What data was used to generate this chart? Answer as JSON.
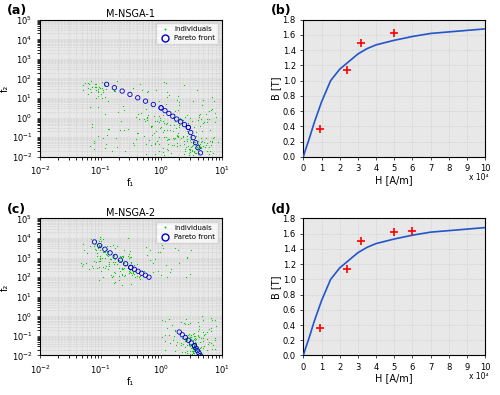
{
  "title_a": "M-NSGA-1",
  "title_c": "M-NSGA-2",
  "panel_labels": [
    "(a)",
    "(b)",
    "(c)",
    "(d)"
  ],
  "xlabel_scatter": "f₁",
  "ylabel_scatter": "f₂",
  "xlabel_bh": "H [A/m]",
  "ylabel_bh": "B [T]",
  "bh_xtick_label": "x 10⁴",
  "bh_xlim": [
    0,
    10
  ],
  "bh_ylim": [
    0,
    1.8
  ],
  "bh_yticks": [
    0,
    0.2,
    0.4,
    0.6,
    0.8,
    1.0,
    1.2,
    1.4,
    1.6,
    1.8
  ],
  "bh_xticks": [
    0,
    1,
    2,
    3,
    4,
    5,
    6,
    7,
    8,
    9,
    10
  ],
  "green_color": "#00cc00",
  "blue_color": "#0000cc",
  "red_color": "#ff0000",
  "curve_color": "#2255cc",
  "background_color": "#ffffff",
  "grid_color": "#bbbbbb",
  "bh_curve_x": [
    0,
    0.1,
    0.3,
    0.6,
    1.0,
    1.5,
    2.0,
    2.5,
    3.0,
    3.5,
    4.0,
    5.0,
    6.0,
    7.0,
    8.0,
    9.0,
    10.0
  ],
  "bh_curve_y": [
    0,
    0.08,
    0.22,
    0.45,
    0.72,
    1.0,
    1.15,
    1.25,
    1.35,
    1.42,
    1.47,
    1.53,
    1.58,
    1.62,
    1.64,
    1.66,
    1.68
  ],
  "bh_points_b": [
    [
      0.9,
      0.36
    ],
    [
      2.4,
      1.14
    ],
    [
      3.2,
      1.5
    ],
    [
      5.0,
      1.62
    ]
  ],
  "bh_points_d": [
    [
      0.9,
      0.36
    ],
    [
      2.4,
      1.14
    ],
    [
      3.2,
      1.5
    ],
    [
      5.0,
      1.62
    ],
    [
      6.0,
      1.63
    ]
  ],
  "seed_a": 42,
  "seed_c": 99
}
